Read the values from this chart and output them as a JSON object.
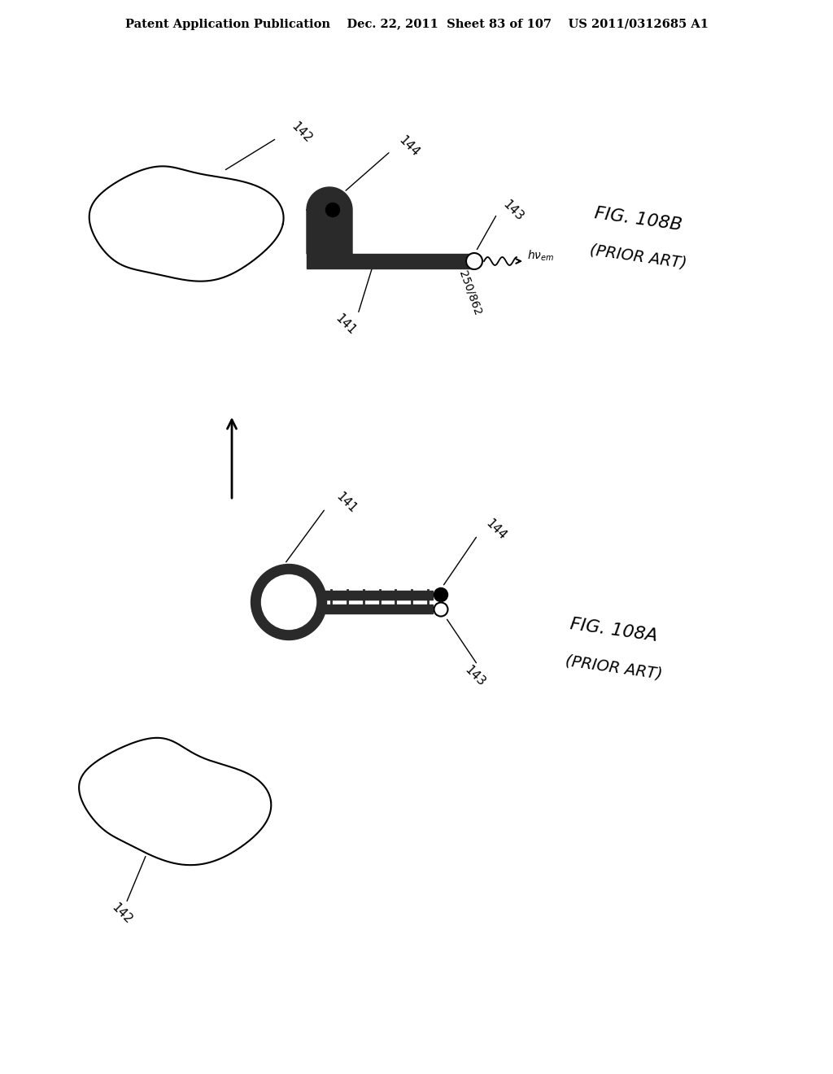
{
  "bg_color": "#ffffff",
  "header_text": "Patent Application Publication    Dec. 22, 2011  Sheet 83 of 107    US 2011/0312685 A1",
  "header_fontsize": 10.5,
  "fig_label_A": "FIG. 108A",
  "fig_label_A_sub": "(PRIOR ART)",
  "fig_label_B": "FIG. 108B",
  "fig_label_B_sub": "(PRIOR ART)",
  "label_fontsize": 16,
  "annotation_fontsize": 11
}
